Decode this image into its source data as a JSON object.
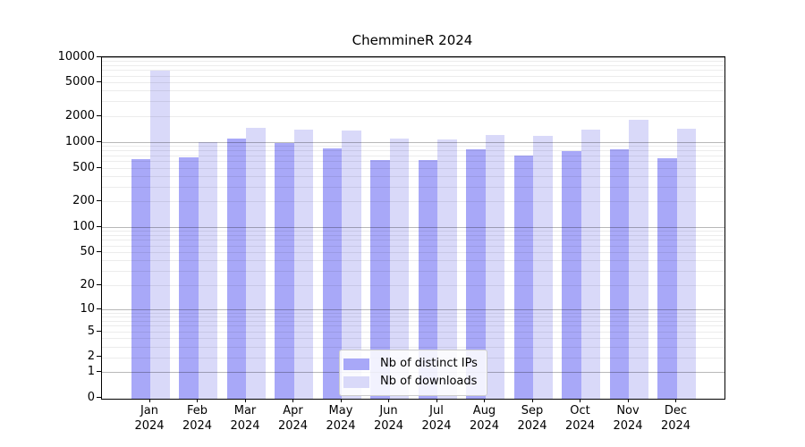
{
  "chart_data": {
    "type": "bar",
    "title": "ChemmineR 2024",
    "y_scale": "log1p",
    "ylim": [
      0,
      10000
    ],
    "y_ticks": [
      0,
      1,
      2,
      5,
      10,
      20,
      50,
      100,
      200,
      500,
      1000,
      2000,
      5000,
      10000
    ],
    "categories": [
      "Jan",
      "Feb",
      "Mar",
      "Apr",
      "May",
      "Jun",
      "Jul",
      "Aug",
      "Sep",
      "Oct",
      "Nov",
      "Dec"
    ],
    "category_year": "2024",
    "series": [
      {
        "name": "Nb of distinct IPs",
        "color": "#a8a8f8",
        "values": [
          640,
          670,
          1100,
          980,
          860,
          620,
          620,
          830,
          700,
          800,
          840,
          660
        ]
      },
      {
        "name": "Nb of downloads",
        "color": "#d9d9f9",
        "values": [
          7000,
          1020,
          1500,
          1400,
          1380,
          1120,
          1090,
          1220,
          1200,
          1420,
          1830,
          1460
        ]
      }
    ],
    "legend": {
      "position": "bottom-center",
      "entries": [
        "Nb of distinct IPs",
        "Nb of downloads"
      ]
    },
    "grid": {
      "visible": true,
      "major_color": "#b9b9b9",
      "minor_color": "#ececec"
    }
  }
}
